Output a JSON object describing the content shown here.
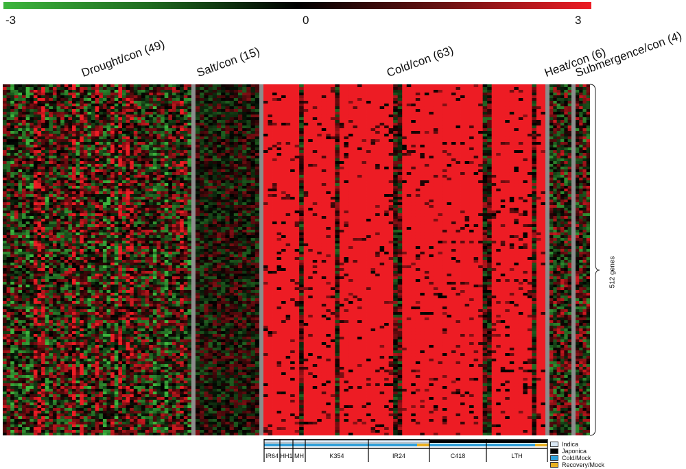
{
  "colorbar": {
    "min_label": "-3",
    "mid_label": "0",
    "max_label": "3",
    "colors": [
      "#3db53d",
      "#000000",
      "#ed1c24"
    ]
  },
  "chart_data": {
    "type": "heatmap",
    "value_range": [
      -3,
      3
    ],
    "groups": [
      {
        "label": "Drought/con (49)",
        "columns": 49
      },
      {
        "label": "Salt/con (15)",
        "columns": 15
      },
      {
        "label": "Cold/con (63)",
        "columns": 63
      },
      {
        "label": "Heat/con (6)",
        "columns": 6
      },
      {
        "label": "Submergence/con (4)",
        "columns": 4
      }
    ],
    "rows": 512,
    "row_annotation": "512 genes",
    "cold_subgroups": [
      "IR64",
      "HH1",
      "MH",
      "K354",
      "IR24",
      "C418",
      "LTH"
    ],
    "legend": [
      {
        "label": "Indica",
        "color": "#dbe9f6"
      },
      {
        "label": "Japonica",
        "color": "#000000"
      },
      {
        "label": "Cold/Mock",
        "color": "#2e9fd9"
      },
      {
        "label": "Recovery/Mock",
        "color": "#e8b021"
      }
    ]
  }
}
